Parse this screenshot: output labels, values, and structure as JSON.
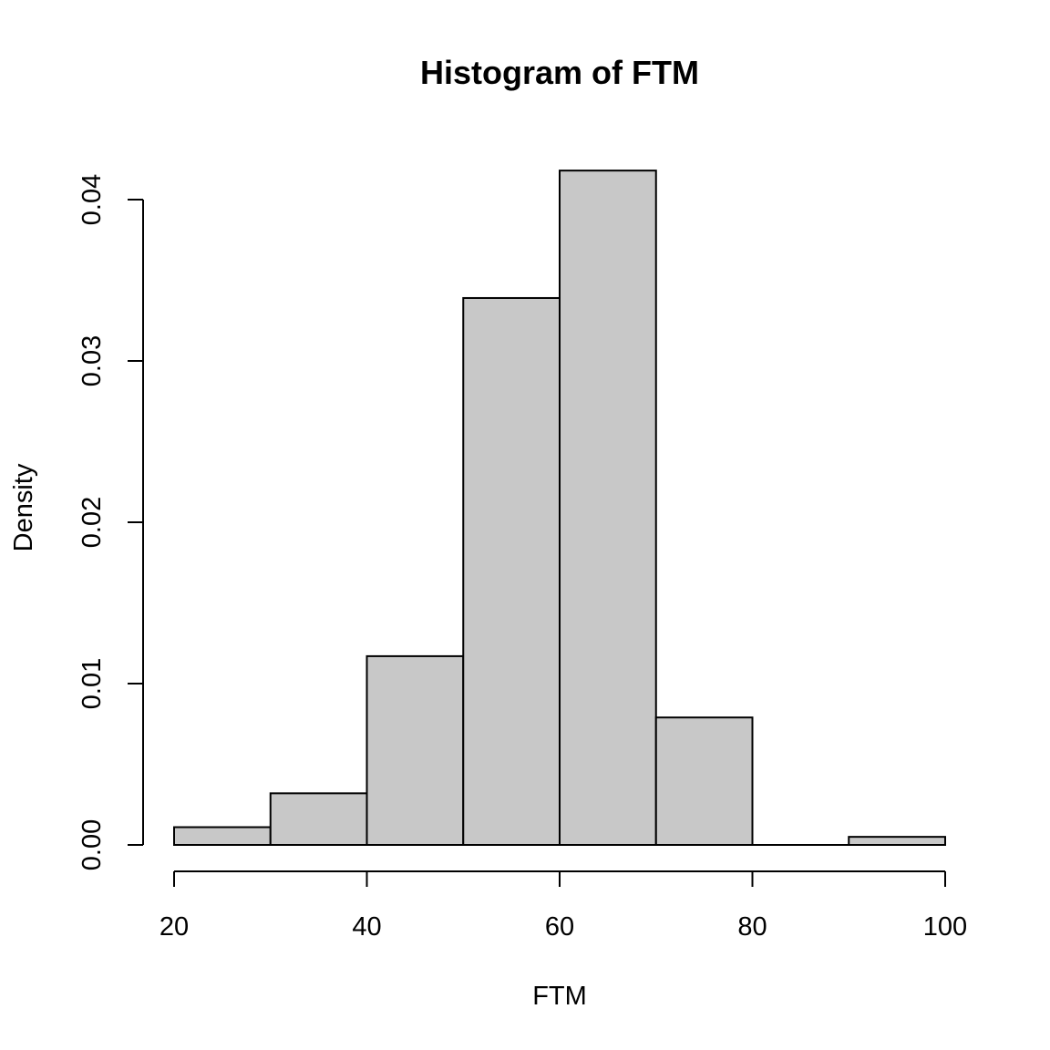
{
  "chart_data": {
    "type": "bar",
    "title": "Histogram of FTM",
    "xlabel": "FTM",
    "ylabel": "Density",
    "bins": [
      {
        "start": 20,
        "end": 30,
        "density": 0.0011
      },
      {
        "start": 30,
        "end": 40,
        "density": 0.0032
      },
      {
        "start": 40,
        "end": 50,
        "density": 0.0117
      },
      {
        "start": 50,
        "end": 60,
        "density": 0.0339
      },
      {
        "start": 60,
        "end": 70,
        "density": 0.0418
      },
      {
        "start": 70,
        "end": 80,
        "density": 0.0079
      },
      {
        "start": 80,
        "end": 90,
        "density": 0.0
      },
      {
        "start": 90,
        "end": 100,
        "density": 0.0005
      }
    ],
    "xlim": [
      20,
      100
    ],
    "ylim": [
      0,
      0.042
    ],
    "xticks": [
      20,
      40,
      60,
      80,
      100
    ],
    "yticks": [
      0.0,
      0.01,
      0.02,
      0.03,
      0.04
    ],
    "xtick_labels": [
      "20",
      "40",
      "60",
      "80",
      "100"
    ],
    "ytick_labels": [
      "0.00",
      "0.01",
      "0.02",
      "0.03",
      "0.04"
    ],
    "bar_color": "#c8c8c8",
    "edge_color": "#000000",
    "grid": false,
    "legend": "none"
  }
}
